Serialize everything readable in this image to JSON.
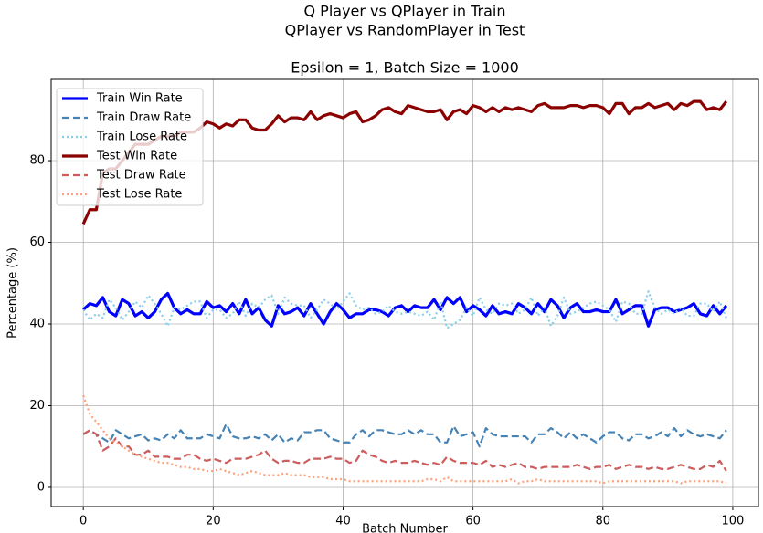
{
  "chart_data": {
    "type": "line",
    "title": [
      "Q Player vs QPlayer in Train",
      "QPlayer vs RandomPlayer in Test"
    ],
    "subtitle": "Epsilon = 1, Batch Size = 1000",
    "xlabel": "Batch Number",
    "ylabel": "Percentage (%)",
    "x": [
      0,
      1,
      2,
      3,
      4,
      5,
      6,
      7,
      8,
      9,
      10,
      11,
      12,
      13,
      14,
      15,
      16,
      17,
      18,
      19,
      20,
      21,
      22,
      23,
      24,
      25,
      26,
      27,
      28,
      29,
      30,
      31,
      32,
      33,
      34,
      35,
      36,
      37,
      38,
      39,
      40,
      41,
      42,
      43,
      44,
      45,
      46,
      47,
      48,
      49,
      50,
      51,
      52,
      53,
      54,
      55,
      56,
      57,
      58,
      59,
      60,
      61,
      62,
      63,
      64,
      65,
      66,
      67,
      68,
      69,
      70,
      71,
      72,
      73,
      74,
      75,
      76,
      77,
      78,
      79,
      80,
      81,
      82,
      83,
      84,
      85,
      86,
      87,
      88,
      89,
      90,
      91,
      92,
      93,
      94,
      95,
      96,
      97,
      98,
      99
    ],
    "xlim": [
      -4.95,
      103.95
    ],
    "ylim": [
      -4.7,
      99.9
    ],
    "xticks": [
      0,
      20,
      40,
      60,
      80,
      100
    ],
    "yticks": [
      0,
      20,
      40,
      60,
      80
    ],
    "grid": true,
    "legend": "upper-left",
    "series": [
      {
        "name": "Train Win Rate",
        "color": "#0000ff",
        "style": "solid",
        "values": [
          43.5,
          45,
          44.5,
          46.5,
          43,
          42,
          46,
          45,
          42,
          43,
          41.5,
          43,
          46,
          47.5,
          44,
          42.5,
          43.5,
          42.5,
          42.5,
          45.5,
          44,
          44.5,
          43,
          45,
          42.5,
          46,
          42.5,
          44,
          41,
          39.5,
          44.5,
          42.5,
          43,
          44,
          42,
          45,
          42.5,
          40,
          43,
          45,
          43.5,
          41.5,
          42.5,
          42.5,
          43.5,
          43.5,
          43,
          42,
          44,
          44.5,
          43,
          44.5,
          44,
          44,
          46,
          43.5,
          46.5,
          45,
          46.5,
          43,
          44.5,
          43.5,
          42,
          44.5,
          42.5,
          43,
          42.5,
          45,
          44,
          42.5,
          45,
          43,
          46,
          44.5,
          41.5,
          44,
          45,
          43,
          43,
          43.5,
          43,
          43,
          46,
          42.5,
          43.5,
          44.5,
          44.5,
          39.5,
          43.5,
          44,
          44,
          43,
          43.5,
          44,
          45,
          42.5,
          42,
          44.5,
          42.5,
          44.5
        ]
      },
      {
        "name": "Train Draw Rate",
        "color": "#4682b4",
        "style": "dashed",
        "values": [
          13,
          14,
          13,
          12,
          11,
          14,
          13,
          12,
          12.5,
          13,
          11.5,
          12,
          11.5,
          13,
          12,
          14,
          12,
          12,
          12,
          13,
          12.5,
          12,
          15.5,
          12.5,
          12,
          12,
          12.5,
          12,
          13,
          11.5,
          13,
          11,
          12,
          11.5,
          13.5,
          13.5,
          14,
          14,
          12,
          11.5,
          11,
          11,
          13,
          14,
          12.5,
          14,
          14,
          13.5,
          13,
          13,
          14,
          13,
          14,
          13,
          13,
          11,
          11,
          15,
          12.5,
          13,
          13.5,
          10,
          14.5,
          13,
          12.5,
          12.5,
          12.5,
          12.5,
          12.5,
          11,
          13,
          13,
          14.5,
          13.5,
          12,
          13.5,
          12,
          13,
          12,
          11,
          12.5,
          13.5,
          13.5,
          12,
          11.5,
          13,
          13,
          12,
          12.5,
          13.5,
          12.5,
          14.5,
          12.5,
          14,
          13,
          12.5,
          13,
          12.5,
          12,
          14
        ]
      },
      {
        "name": "Train Lose Rate",
        "color": "#87ceeb",
        "style": "dotted",
        "values": [
          43.5,
          41,
          42.5,
          41.5,
          46,
          44,
          41,
          43,
          45.5,
          44,
          47,
          45,
          42.5,
          39.5,
          44,
          43.5,
          44.5,
          45.5,
          45.5,
          41.5,
          43.5,
          43.5,
          41.5,
          42.5,
          45.5,
          42,
          45,
          44,
          46,
          47,
          42.5,
          46.5,
          45,
          44.5,
          44.5,
          41.5,
          43.5,
          46,
          45,
          43.5,
          45.5,
          47.5,
          44.5,
          43.5,
          44,
          42.5,
          43,
          44.5,
          43,
          42.5,
          43,
          42.5,
          42,
          43,
          41,
          45.5,
          39,
          40,
          41,
          44,
          42,
          46.5,
          43.5,
          42.5,
          45,
          44.5,
          45,
          42.5,
          43.5,
          46.5,
          42,
          44,
          39.5,
          42,
          46.5,
          42.5,
          43,
          44,
          45,
          45.5,
          44.5,
          43.5,
          40.5,
          45.5,
          45,
          42.5,
          42.5,
          48,
          44,
          42.5,
          43.5,
          42.5,
          44,
          42,
          42,
          45,
          45,
          43,
          45.5,
          41.5
        ]
      },
      {
        "name": "Test Win Rate",
        "color": "#8b0000",
        "style": "solid",
        "values": [
          64.5,
          68,
          68,
          77,
          78,
          78,
          80,
          82,
          84,
          84,
          84,
          85,
          86,
          86,
          86,
          87,
          87,
          87,
          88,
          89.5,
          89,
          88,
          89,
          88.5,
          90,
          90,
          88,
          87.5,
          87.5,
          89,
          91,
          89.5,
          90.5,
          90.5,
          90,
          92,
          90,
          91,
          91.5,
          91,
          90.5,
          91.5,
          92,
          89.5,
          90,
          91,
          92.5,
          93,
          92,
          91.5,
          93.5,
          93,
          92.5,
          92,
          92,
          92.5,
          90,
          92,
          92.5,
          91.5,
          93.5,
          93,
          92,
          93,
          92,
          93,
          92.5,
          93,
          92.5,
          92,
          93.5,
          94,
          93,
          93,
          93,
          93.5,
          93.5,
          93,
          93.5,
          93.5,
          93,
          91.5,
          94,
          94,
          91.5,
          93,
          93,
          94,
          93,
          93.5,
          94,
          92.5,
          94,
          93.5,
          94.5,
          94.5,
          92.5,
          93,
          92.5,
          94.5
        ]
      },
      {
        "name": "Test Draw Rate",
        "color": "#cd5c5c",
        "style": "dashed",
        "values": [
          13,
          14,
          13,
          9,
          10,
          12,
          10,
          10,
          8,
          8,
          9,
          7.5,
          7.5,
          7.5,
          7,
          7,
          8,
          8,
          7,
          6.5,
          7,
          6.5,
          6,
          7,
          7,
          7,
          7.5,
          8,
          9,
          7,
          6,
          6.5,
          6.5,
          6,
          6,
          7,
          7,
          7,
          7.5,
          7,
          7,
          6,
          6.5,
          9,
          8,
          7.5,
          6.5,
          6,
          6.5,
          6,
          6,
          6.5,
          6,
          5.5,
          6,
          5.5,
          7.5,
          6.5,
          6,
          6,
          6,
          5.5,
          6.5,
          5,
          5.5,
          5,
          5.5,
          6,
          5,
          5,
          4.5,
          5,
          5,
          5,
          5,
          5,
          5.5,
          5,
          4.5,
          5,
          5,
          5.5,
          4.5,
          5,
          5.5,
          5,
          5,
          4.5,
          5,
          4.5,
          4.5,
          5,
          5.5,
          5,
          4.5,
          4.5,
          5.5,
          5,
          6.5,
          4
        ]
      },
      {
        "name": "Test Lose Rate",
        "color": "#ffa07a",
        "style": "dotted",
        "values": [
          22.5,
          18,
          16,
          14,
          12,
          11,
          10,
          9,
          8,
          7.5,
          7,
          6.5,
          6,
          6,
          5.5,
          5,
          5,
          4.5,
          4.5,
          4,
          4,
          4.5,
          4,
          3.5,
          3,
          3.5,
          4,
          3.5,
          3,
          3,
          3,
          3.5,
          3,
          3,
          3,
          2.5,
          2.5,
          2.5,
          2,
          2,
          2,
          1.5,
          1.5,
          1.5,
          1.5,
          1.5,
          1.5,
          1.5,
          1.5,
          1.5,
          1.5,
          1.5,
          1.5,
          2,
          2,
          1.5,
          2.5,
          1.5,
          1.5,
          1.5,
          1.5,
          1.5,
          1.5,
          1.5,
          1.5,
          1.5,
          2,
          1,
          1.5,
          1.5,
          2,
          1.5,
          1.5,
          1.5,
          1.5,
          1.5,
          1.5,
          1.5,
          1.5,
          1.5,
          1,
          1.5,
          1.5,
          1.5,
          1.5,
          1.5,
          1.5,
          1.5,
          1.5,
          1.5,
          1.5,
          1.5,
          1,
          1.5,
          1.5,
          1.5,
          1.5,
          1.5,
          1.5,
          1
        ]
      }
    ]
  }
}
